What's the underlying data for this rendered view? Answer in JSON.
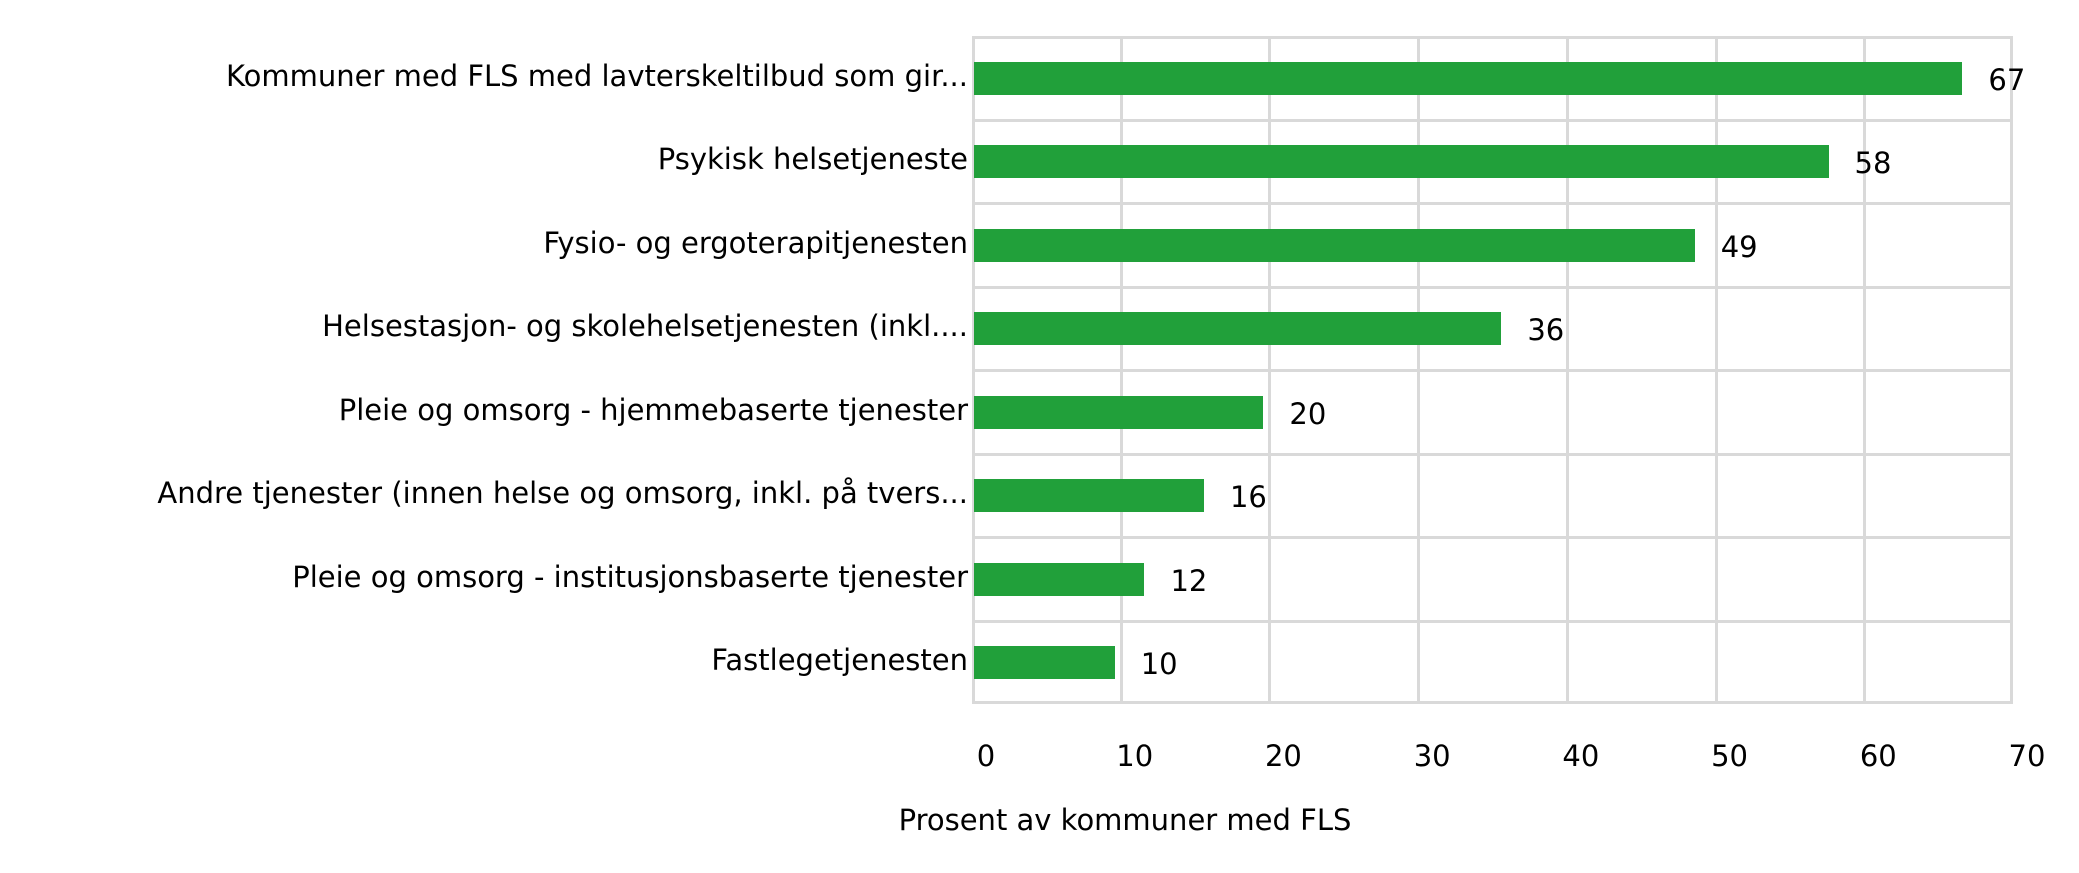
{
  "chart_data": {
    "type": "bar",
    "orientation": "horizontal",
    "title": "",
    "xlabel": "Prosent av kommuner med FLS",
    "ylabel": "",
    "xlim": [
      0,
      70
    ],
    "xticks": [
      0,
      10,
      20,
      30,
      40,
      50,
      60,
      70
    ],
    "grid": true,
    "legend": null,
    "bar_color": "#21a03a",
    "categories": [
      "Kommuner med FLS med lavterskeltilbud som gir...",
      "Psykisk helsetjeneste",
      "Fysio- og ergoterapitjenesten",
      "Helsestasjon- og skolehelsetjenesten (inkl....",
      "Pleie og omsorg - hjemmebaserte tjenester",
      "Andre tjenester (innen helse og omsorg, inkl. på tvers...",
      "Pleie og omsorg - institusjonsbaserte tjenester",
      "Fastlegetjenesten"
    ],
    "values": [
      67,
      58,
      49,
      36,
      20,
      16,
      12,
      10
    ],
    "data_labels": [
      "67",
      "58",
      "49",
      "36",
      "20",
      "16",
      "12",
      "10"
    ]
  },
  "axis": {
    "tick_labels": [
      "0",
      "10",
      "20",
      "30",
      "40",
      "50",
      "60",
      "70"
    ],
    "title": "Prosent av kommuner med FLS"
  }
}
